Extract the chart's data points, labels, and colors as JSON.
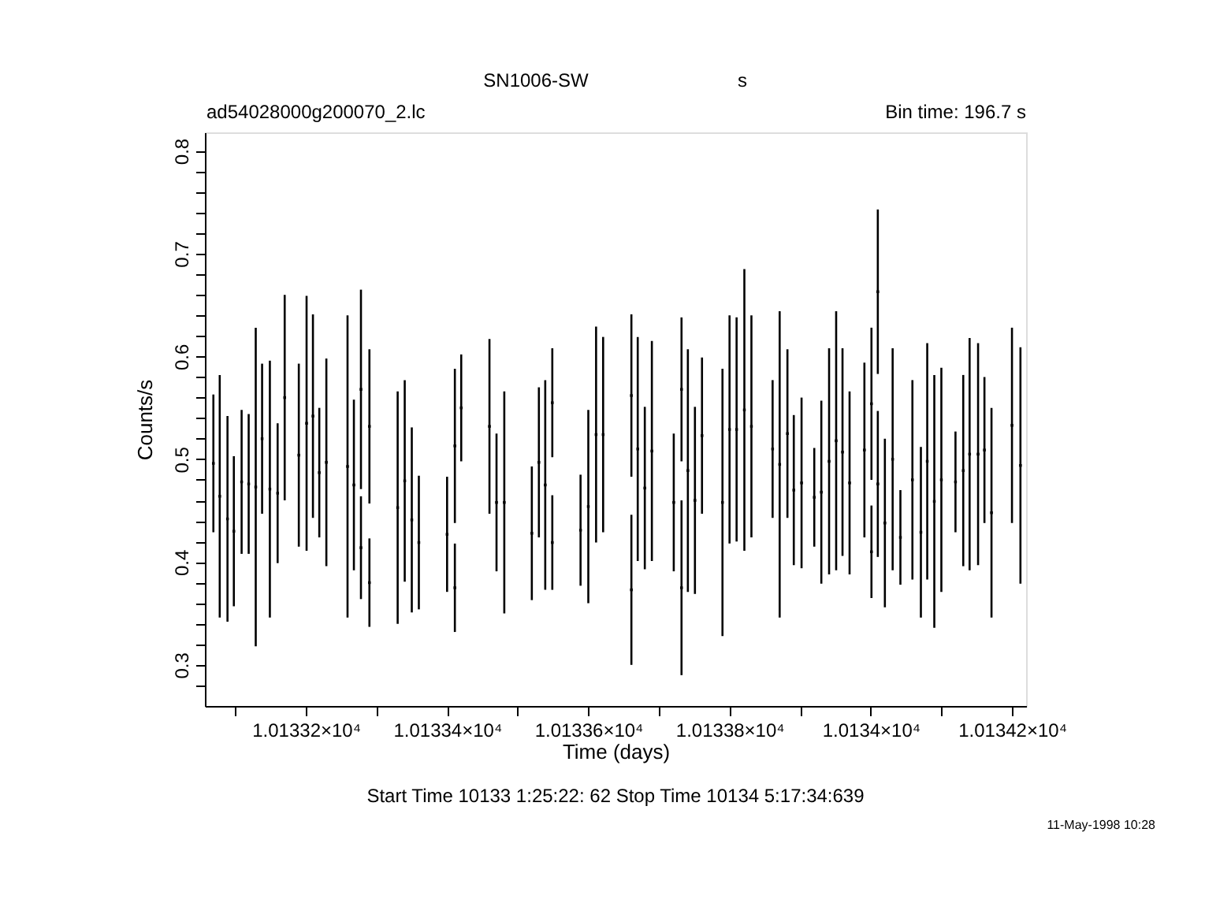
{
  "chart_data": {
    "type": "scatter",
    "title": "SN1006-SW",
    "xlabel": "Time (days)",
    "ylabel": "Counts/s",
    "annotations": [
      "s",
      "ad54028000g200070_2.lc",
      "Bin time:     196.7       s",
      "Start Time 10133  1:25:22: 62    Stop Time 10134  5:17:34:639",
      "11-May-1998 10:28"
    ],
    "x": [
      10133.069,
      10133.078,
      10133.089,
      10133.098,
      10133.109,
      10133.119,
      10133.129,
      10133.138,
      10133.149,
      10133.16,
      10133.17,
      10133.19,
      10133.201,
      10133.21,
      10133.219,
      10133.229,
      10133.259,
      10133.268,
      10133.278,
      10133.278,
      10133.29,
      10133.29,
      10133.33,
      10133.34,
      10133.35,
      10133.36,
      10133.4,
      10133.411,
      10133.411,
      10133.42,
      10133.46,
      10133.47,
      10133.481,
      10133.52,
      10133.53,
      10133.539,
      10133.549,
      10133.549,
      10133.589,
      10133.6,
      10133.611,
      10133.621,
      10133.661,
      10133.661,
      10133.67,
      10133.68,
      10133.69,
      10133.721,
      10133.732,
      10133.732,
      10133.741,
      10133.751,
      10133.761,
      10133.79,
      10133.8,
      10133.81,
      10133.821,
      10133.831,
      10133.861,
      10133.871,
      10133.882,
      10133.891,
      10133.902,
      10133.92,
      10133.93,
      10133.941,
      10133.951,
      10133.96,
      10133.97,
      10133.991,
      10134.001,
      10134.001,
      10134.01,
      10134.01,
      10134.02,
      10134.031,
      10134.042,
      10134.059,
      10134.071,
      10134.08,
      10134.09,
      10134.1,
      10134.12,
      10134.131,
      10134.14,
      10134.152,
      10134.161,
      10134.171,
      10134.2,
      10134.212
    ],
    "series": [
      {
        "color": "#000000",
        "values": [
          0.496,
          0.464,
          0.442,
          0.43,
          0.478,
          0.476,
          0.473,
          0.52,
          0.471,
          0.467,
          0.56,
          0.504,
          0.535,
          0.542,
          0.487,
          0.497,
          0.493,
          0.475,
          0.568,
          0.414,
          0.532,
          0.38,
          0.453,
          0.479,
          0.441,
          0.419,
          0.427,
          0.513,
          0.375,
          0.55,
          0.532,
          0.458,
          0.458,
          0.428,
          0.497,
          0.475,
          0.555,
          0.419,
          0.431,
          0.454,
          0.524,
          0.524,
          0.562,
          0.373,
          0.51,
          0.472,
          0.508,
          0.458,
          0.568,
          0.375,
          0.489,
          0.46,
          0.523,
          0.458,
          0.529,
          0.529,
          0.548,
          0.532,
          0.51,
          0.495,
          0.525,
          0.47,
          0.477,
          0.463,
          0.468,
          0.498,
          0.518,
          0.507,
          0.477,
          0.509,
          0.554,
          0.41,
          0.663,
          0.476,
          0.438,
          0.5,
          0.424,
          0.48,
          0.429,
          0.498,
          0.459,
          0.48,
          0.478,
          0.489,
          0.505,
          0.505,
          0.509,
          0.448,
          0.533,
          0.494
        ],
        "errors": [
          0.067,
          0.118,
          0.1,
          0.073,
          0.07,
          0.068,
          0.155,
          0.073,
          0.125,
          0.068,
          0.1,
          0.089,
          0.124,
          0.099,
          0.063,
          0.101,
          0.147,
          0.083,
          0.097,
          0.05,
          0.075,
          0.043,
          0.113,
          0.098,
          0.09,
          0.065,
          0.056,
          0.075,
          0.043,
          0.052,
          0.085,
          0.067,
          0.108,
          0.065,
          0.073,
          0.102,
          0.053,
          0.046,
          0.054,
          0.094,
          0.105,
          0.095,
          0.079,
          0.073,
          0.109,
          0.079,
          0.107,
          0.067,
          0.07,
          0.085,
          0.118,
          0.091,
          0.076,
          0.13,
          0.111,
          0.109,
          0.137,
          0.108,
          0.067,
          0.149,
          0.082,
          0.073,
          0.083,
          0.048,
          0.089,
          0.11,
          0.126,
          0.101,
          0.089,
          0.085,
          0.074,
          0.045,
          0.08,
          0.071,
          0.082,
          0.108,
          0.046,
          0.097,
          0.083,
          0.115,
          0.123,
          0.109,
          0.049,
          0.093,
          0.113,
          0.108,
          0.071,
          0.102,
          0.095,
          0.115
        ]
      }
    ],
    "marker": "square",
    "grid": false,
    "xlim": [
      10133.057,
      10134.22
    ],
    "xticks": [
      {
        "value": 10133.1,
        "label": null
      },
      {
        "value": 10133.2,
        "label": "1.01332×10⁴"
      },
      {
        "value": 10133.3,
        "label": null
      },
      {
        "value": 10133.4,
        "label": "1.01334×10⁴"
      },
      {
        "value": 10133.5,
        "label": null
      },
      {
        "value": 10133.6,
        "label": "1.01336×10⁴"
      },
      {
        "value": 10133.7,
        "label": null
      },
      {
        "value": 10133.8,
        "label": "1.01338×10⁴"
      },
      {
        "value": 10133.9,
        "label": null
      },
      {
        "value": 10134.0,
        "label": "1.0134×10⁴"
      },
      {
        "value": 10134.1,
        "label": null
      },
      {
        "value": 10134.2,
        "label": "1.01342×10⁴"
      }
    ],
    "ylim": [
      0.26,
      0.818
    ],
    "yticks": [
      {
        "value": 0.28,
        "label": null
      },
      0.3,
      {
        "value": 0.32,
        "label": null
      },
      {
        "value": 0.34,
        "label": null
      },
      {
        "value": 0.36,
        "label": null
      },
      {
        "value": 0.38,
        "label": null
      },
      0.4,
      {
        "value": 0.42,
        "label": null
      },
      {
        "value": 0.44,
        "label": null
      },
      {
        "value": 0.46,
        "label": null
      },
      {
        "value": 0.48,
        "label": null
      },
      0.5,
      {
        "value": 0.52,
        "label": null
      },
      {
        "value": 0.54,
        "label": null
      },
      {
        "value": 0.56,
        "label": null
      },
      {
        "value": 0.58,
        "label": null
      },
      0.6,
      {
        "value": 0.62,
        "label": null
      },
      {
        "value": 0.64,
        "label": null
      },
      {
        "value": 0.66,
        "label": null
      },
      {
        "value": 0.68,
        "label": null
      },
      0.7,
      {
        "value": 0.72,
        "label": null
      },
      {
        "value": 0.74,
        "label": null
      },
      {
        "value": 0.76,
        "label": null
      },
      {
        "value": 0.78,
        "label": null
      },
      0.8
    ]
  }
}
